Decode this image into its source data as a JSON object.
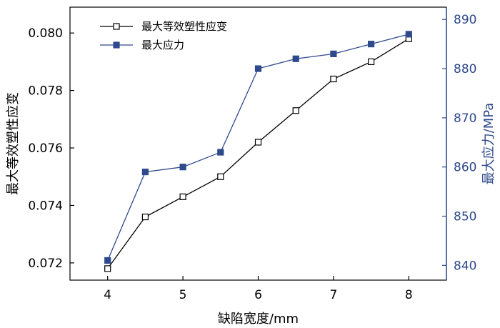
{
  "chart_data": {
    "type": "line",
    "xlabel": "缺陷宽度/mm",
    "x_ticks": [
      4,
      5,
      6,
      7,
      8
    ],
    "xlim": [
      3.5,
      8.5
    ],
    "left_axis": {
      "label": "最大等效塑性应变",
      "ylim": [
        0.0714,
        0.0809
      ],
      "ticks": [
        "0.072",
        "0.074",
        "0.076",
        "0.078",
        "0.080"
      ]
    },
    "right_axis": {
      "label": "最大应力/MPa",
      "ylim": [
        837,
        892.5
      ],
      "ticks": [
        "840",
        "850",
        "860",
        "870",
        "880",
        "890"
      ],
      "color": "#2e4a8c"
    },
    "legend_position": "top-left",
    "series": [
      {
        "name": "最大等效塑性应变",
        "axis": "left",
        "color": "#000000",
        "marker": "open-square",
        "x": [
          4,
          4.5,
          5,
          5.5,
          6,
          6.5,
          7,
          7.5,
          8
        ],
        "values": [
          0.0718,
          0.0736,
          0.0743,
          0.075,
          0.0762,
          0.0773,
          0.0784,
          0.079,
          0.0798
        ]
      },
      {
        "name": "最大应力",
        "axis": "right",
        "color": "#2e4a8c",
        "marker": "filled-square",
        "x": [
          4,
          4.5,
          5,
          5.5,
          6,
          6.5,
          7,
          7.5,
          8
        ],
        "values": [
          841,
          859,
          860,
          863,
          880,
          882,
          883,
          885,
          887
        ]
      }
    ]
  }
}
